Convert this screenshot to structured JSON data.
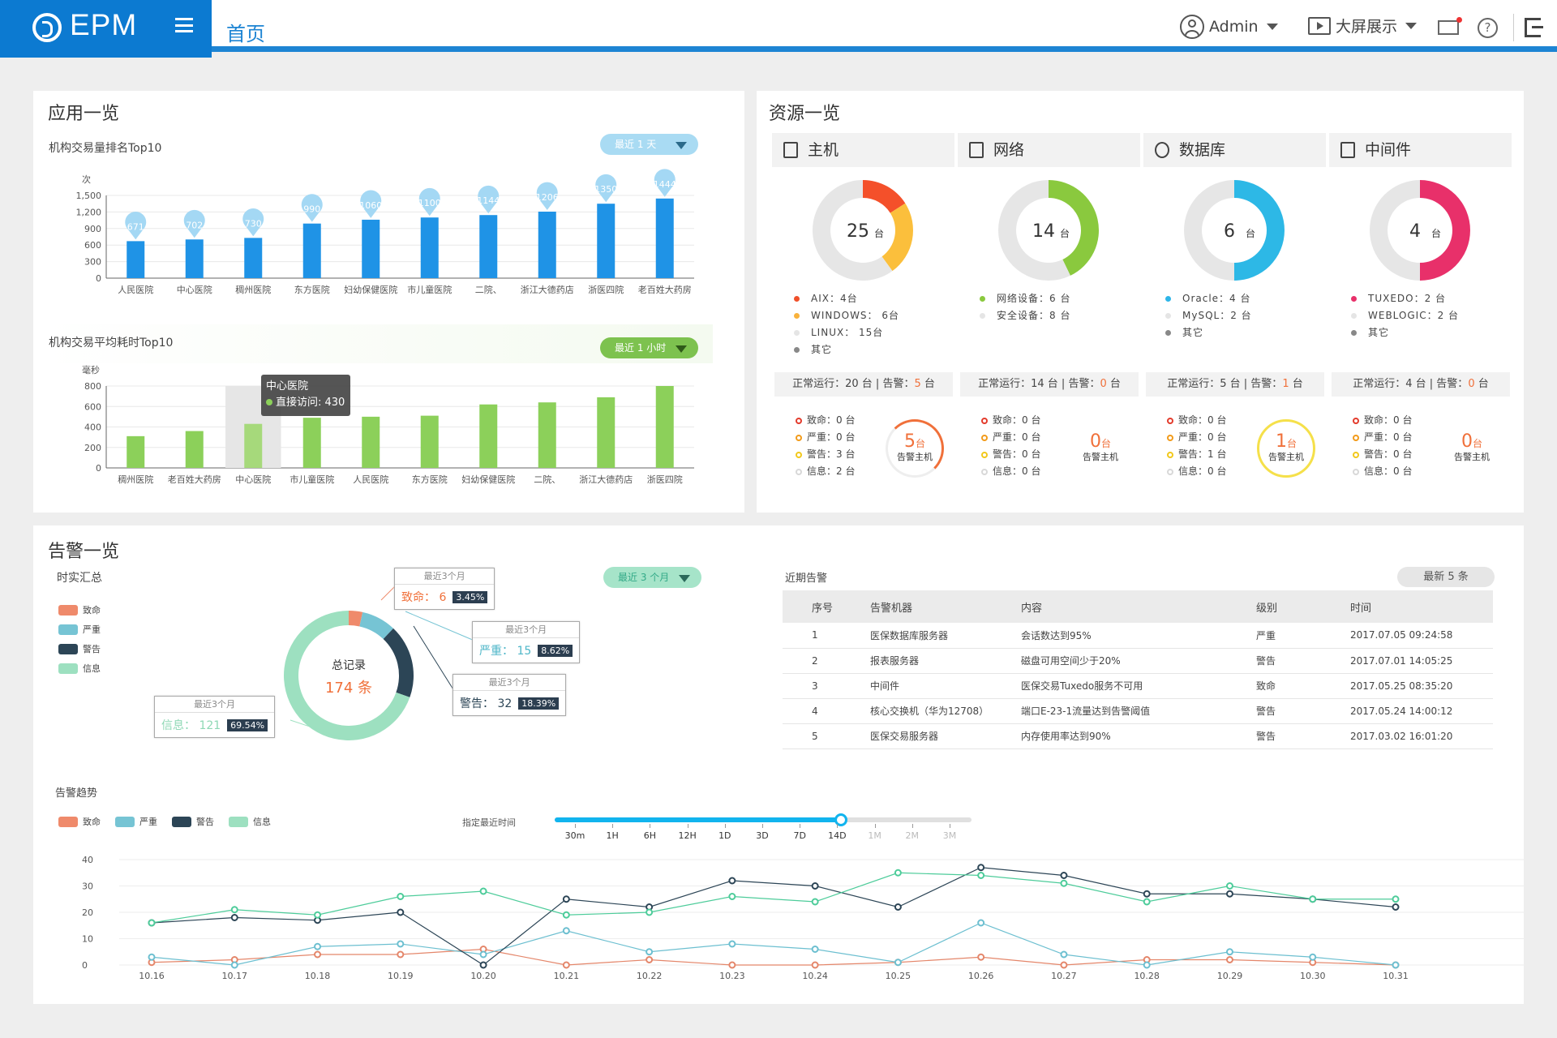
{
  "header": {
    "brand": "EPM",
    "home_tab": "首页",
    "user": "Admin",
    "big_screen": "大屏展示"
  },
  "apps": {
    "title": "应用一览",
    "chart1_title": "机构交易量排名Top10",
    "chart1_filter": "最近 1 天",
    "chart2_title": "机构交易平均耗时Top10",
    "chart2_filter": "最近 1 小时",
    "tooltip": {
      "title": "中心医院",
      "label": "直接访问: 430"
    }
  },
  "resources": {
    "title": "资源一览",
    "tabs": [
      {
        "label": "主机",
        "icon": "server-icon"
      },
      {
        "label": "网络",
        "icon": "network-icon"
      },
      {
        "label": "数据库",
        "icon": "database-icon"
      },
      {
        "label": "中间件",
        "icon": "monitor-icon"
      }
    ],
    "groups": [
      {
        "total": "25",
        "unit": "台",
        "legend": [
          "AIX：4台",
          "WINDOWS： 6台",
          "LINUX： 15台",
          "其它"
        ],
        "legend_colors": [
          "#f0502a",
          "#f9b23c",
          "#e5e5e5",
          "#888888"
        ],
        "status": "正常运行：20 台",
        "warn_label": "告警：",
        "warn": "5",
        "warn_unit": "台",
        "sev": [
          "致命：0 台",
          "严重：0 台",
          "警告：3 台",
          "信息：2 台"
        ],
        "alarm_n": "5",
        "alarm_label": "告警主机"
      },
      {
        "total": "14",
        "unit": "台",
        "legend": [
          "网络设备：6 台",
          "安全设备：8 台"
        ],
        "legend_colors": [
          "#8ac93e",
          "#e5e5e5"
        ],
        "status": "正常运行：14 台",
        "warn_label": "告警：",
        "warn": "0",
        "warn_unit": "台",
        "sev": [
          "致命：0 台",
          "严重：0 台",
          "警告：0 台",
          "信息：0 台"
        ],
        "alarm_n": "0",
        "alarm_label": "告警主机"
      },
      {
        "total": "6",
        "unit": "台",
        "legend": [
          "Oracle：4 台",
          "MySQL：2 台",
          "其它"
        ],
        "legend_colors": [
          "#2db5e8",
          "#e5e5e5",
          "#888888"
        ],
        "status": "正常运行：5 台",
        "warn_label": "告警：",
        "warn": "1",
        "warn_unit": "台",
        "sev": [
          "致命：0 台",
          "严重：0 台",
          "警告：1 台",
          "信息：0 台"
        ],
        "alarm_n": "1",
        "alarm_label": "告警主机"
      },
      {
        "total": "4",
        "unit": "台",
        "legend": [
          "TUXEDO：2 台",
          "WEBLOGIC：2 台",
          "其它"
        ],
        "legend_colors": [
          "#e8306a",
          "#e5e5e5",
          "#888888"
        ],
        "status": "正常运行：4 台",
        "warn_label": "告警：",
        "warn": "0",
        "warn_unit": "台",
        "sev": [
          "致命：0 台",
          "严重：0 台",
          "警告：0 台",
          "信息：0 台"
        ],
        "alarm_n": "0",
        "alarm_label": "告警主机"
      }
    ],
    "sev_colors": [
      "#e33b2c",
      "#f29b1b",
      "#f2c81b",
      "#d8d8d8"
    ]
  },
  "alarms": {
    "title": "告警一览",
    "summary_title": "时实汇总",
    "filter": "最近 3 个月",
    "donut_label": "总记录",
    "donut_total": "174 条",
    "callouts": [
      {
        "period": "最近3个月",
        "label": "致命：",
        "count": "6",
        "pct": "3.45%"
      },
      {
        "period": "最近3个月",
        "label": "严重：",
        "count": "15",
        "pct": "8.62%"
      },
      {
        "period": "最近3个月",
        "label": "警告：",
        "count": "32",
        "pct": "18.39%"
      },
      {
        "period": "最近3个月",
        "label": "信息：",
        "count": "121",
        "pct": "69.54%"
      }
    ],
    "recent_title": "近期告警",
    "recent_filter": "最新 5 条",
    "table_headers": [
      "序号",
      "告警机器",
      "内容",
      "级别",
      "时间"
    ],
    "rows": [
      [
        "1",
        "医保数据库服务器",
        "会话数达到95%",
        "严重",
        "2017.07.05 09:24:58"
      ],
      [
        "2",
        "报表服务器",
        "磁盘可用空间少于20%",
        "警告",
        "2017.07.01 14:05:25"
      ],
      [
        "3",
        "中间件",
        "医保交易Tuxedo服务不可用",
        "致命",
        "2017.05.25 08:35:20"
      ],
      [
        "4",
        "核心交换机（华为12708）",
        "端口E-23-1流量达到告警阈值",
        "警告",
        "2017.05.24 14:00:12"
      ],
      [
        "5",
        "医保交易服务器",
        "内存使用率达到90%",
        "警告",
        "2017.03.02 16:01:20"
      ]
    ],
    "trend_title": "告警趋势",
    "slider_label": "指定最近时间",
    "slider_ticks": [
      "30m",
      "1H",
      "6H",
      "12H",
      "1D",
      "3D",
      "7D",
      "14D",
      "1M",
      "2M",
      "3M"
    ],
    "slider_value": "14D"
  },
  "colors": {
    "fatal": "#ef8a6b",
    "severe": "#76c4d4",
    "warn": "#2c4556",
    "info": "#9de0c0"
  },
  "chart_data": [
    {
      "type": "bar",
      "title": "机构交易量排名Top10",
      "ylabel": "次",
      "ylim": [
        0,
        1500
      ],
      "yticks": [
        0,
        300,
        600,
        900,
        1200,
        1500
      ],
      "categories": [
        "人民医院",
        "中心医院",
        "稠州医院",
        "东方医院",
        "妇幼保健医院",
        "市儿童医院",
        "二院、",
        "浙江大德药店",
        "浙医四院",
        "老百姓大药房"
      ],
      "values": [
        671,
        702,
        730,
        990,
        1060,
        1100,
        1144,
        1206,
        1350,
        1444
      ]
    },
    {
      "type": "bar",
      "title": "机构交易平均耗时Top10",
      "ylabel": "毫秒",
      "ylim": [
        0,
        800
      ],
      "yticks": [
        0,
        200,
        400,
        600,
        800
      ],
      "categories": [
        "稠州医院",
        "老百姓大药房",
        "中心医院",
        "市儿童医院",
        "人民医院",
        "东方医院",
        "妇幼保健医院",
        "二院、",
        "浙江大德药店",
        "浙医四院"
      ],
      "values": [
        310,
        360,
        430,
        490,
        500,
        510,
        620,
        640,
        690,
        800
      ]
    },
    {
      "type": "pie",
      "title": "总记录",
      "categories": [
        "致命",
        "严重",
        "警告",
        "信息"
      ],
      "values": [
        6,
        15,
        32,
        121
      ]
    },
    {
      "type": "line",
      "title": "告警趋势",
      "ylim": [
        0,
        40
      ],
      "yticks": [
        0,
        10,
        20,
        30,
        40
      ],
      "x": [
        "10.16",
        "10.17",
        "10.18",
        "10.19",
        "10.20",
        "10.21",
        "10.22",
        "10.23",
        "10.24",
        "10.25",
        "10.26",
        "10.27",
        "10.28",
        "10.29",
        "10.30",
        "10.31"
      ],
      "series": [
        {
          "name": "致命",
          "values": [
            1,
            2,
            4,
            4,
            6,
            0,
            2,
            0,
            0,
            1,
            3,
            0,
            2,
            2,
            1,
            0
          ]
        },
        {
          "name": "严重",
          "values": [
            3,
            0,
            7,
            8,
            4,
            13,
            5,
            8,
            6,
            1,
            16,
            4,
            0,
            5,
            3,
            0
          ]
        },
        {
          "name": "警告",
          "values": [
            16,
            18,
            17,
            20,
            0,
            25,
            22,
            32,
            30,
            22,
            37,
            34,
            27,
            27,
            25,
            22
          ]
        },
        {
          "name": "信息",
          "values": [
            16,
            21,
            19,
            26,
            28,
            19,
            20,
            26,
            24,
            35,
            34,
            31,
            24,
            30,
            25,
            25
          ]
        }
      ]
    }
  ]
}
